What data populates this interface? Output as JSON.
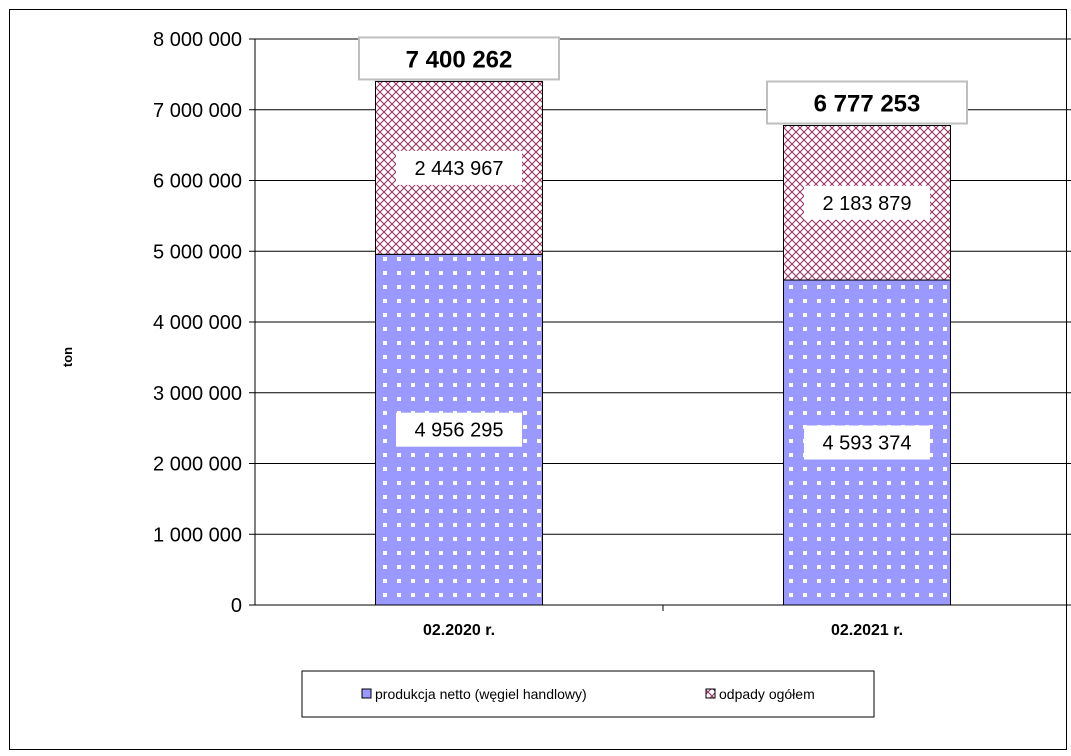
{
  "chart_data": {
    "type": "bar",
    "stacked": true,
    "categories": [
      "02.2020 r.",
      "02.2021 r."
    ],
    "series": [
      {
        "name": "produkcja netto (węgiel handlowy)",
        "values": [
          4956295,
          4593374
        ],
        "labels": [
          "4 956 295",
          "4 593 374"
        ],
        "color": "#9999ff",
        "pattern": "dots"
      },
      {
        "name": "odpady ogółem",
        "values": [
          2443967,
          2183879
        ],
        "labels": [
          "2 443 967",
          "2 183 879"
        ],
        "color": "#993366",
        "pattern": "crosshatch"
      }
    ],
    "totals": [
      7400262,
      6777253
    ],
    "total_labels": [
      "7 400 262",
      "6 777 253"
    ],
    "ylabel": "ton",
    "ylim": [
      0,
      8000000
    ],
    "yticks": [
      0,
      1000000,
      2000000,
      3000000,
      4000000,
      5000000,
      6000000,
      7000000,
      8000000
    ],
    "ytick_labels": [
      "0",
      "1 000 000",
      "2 000 000",
      "3 000 000",
      "4 000 000",
      "5 000 000",
      "6 000 000",
      "7 000 000",
      "8 000 000"
    ],
    "grid": true,
    "legend_position": "bottom"
  }
}
